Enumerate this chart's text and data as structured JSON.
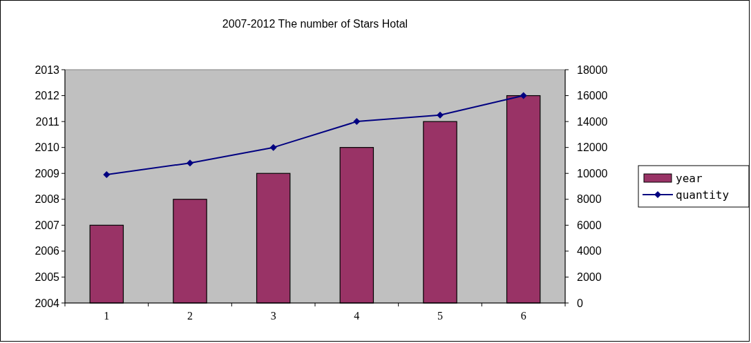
{
  "chart_data": {
    "type": "bar",
    "title": "2007-2012 The number of Stars Hotal",
    "categories": [
      "1",
      "2",
      "3",
      "4",
      "5",
      "6"
    ],
    "series": [
      {
        "name": "year",
        "color": "#993366",
        "values": [
          2007,
          2008,
          2009,
          2010,
          2011,
          2012
        ]
      },
      {
        "name": "quantity",
        "type": "line",
        "axis": "y2",
        "color": "#000080",
        "values": [
          9900,
          10800,
          12000,
          14000,
          14500,
          16000
        ]
      }
    ],
    "ylim": [
      2004,
      2013
    ],
    "yticks": [
      2004,
      2005,
      2006,
      2007,
      2008,
      2009,
      2010,
      2011,
      2012,
      2013
    ],
    "y2lim": [
      0,
      18000
    ],
    "y2ticks": [
      0,
      2000,
      4000,
      6000,
      8000,
      10000,
      12000,
      14000,
      16000,
      18000
    ],
    "legend": "right",
    "marker": "diamond",
    "grid": false
  }
}
